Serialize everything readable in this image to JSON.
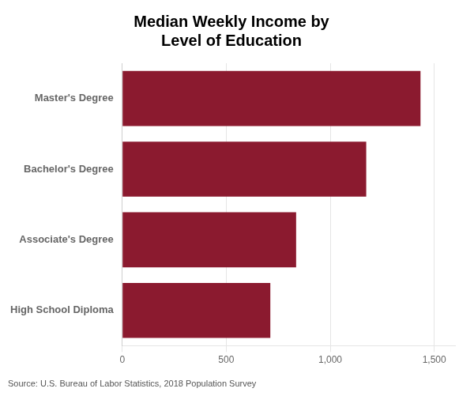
{
  "chart_data": {
    "type": "bar",
    "orientation": "horizontal",
    "title": "Median Weekly Income by\nLevel of Education",
    "categories": [
      "High School Diploma",
      "Associate's Degree",
      "Bachelor's Degree",
      "Master's Degree"
    ],
    "values": [
      712,
      836,
      1173,
      1434
    ],
    "color": "#8B1A2F",
    "xlim": [
      0,
      1600
    ],
    "xticks": [
      0,
      500,
      {
        "value": 1000,
        "label": "1,000"
      },
      {
        "value": 1500,
        "label": "1,500"
      }
    ],
    "grid": true,
    "annotations": [
      "Source: U.S. Bureau of Labor Statistics, 2018 Population Survey"
    ]
  }
}
